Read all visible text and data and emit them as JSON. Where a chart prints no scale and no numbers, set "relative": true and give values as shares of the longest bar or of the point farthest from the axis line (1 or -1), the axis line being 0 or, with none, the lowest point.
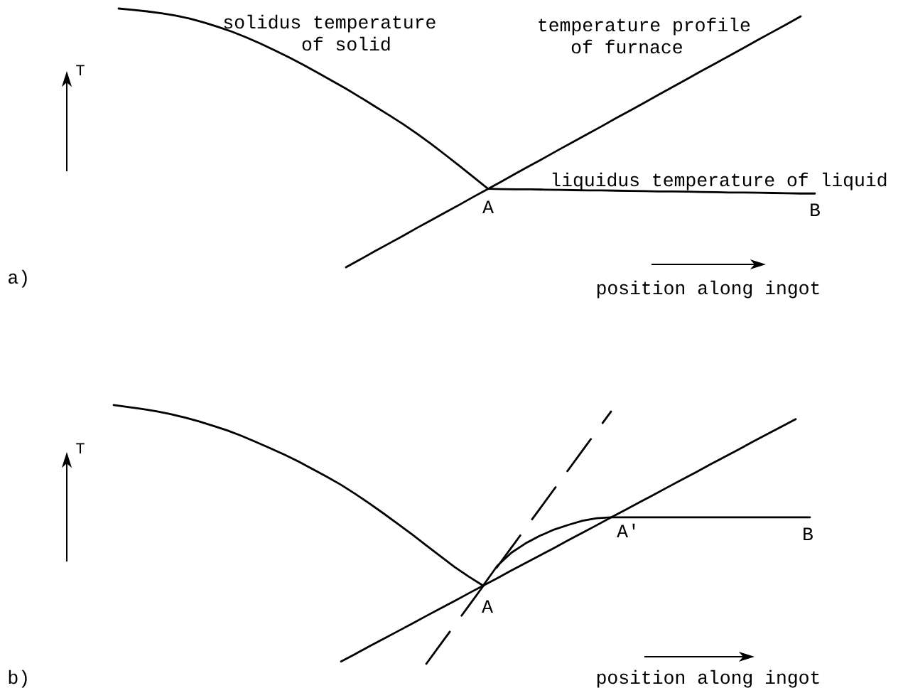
{
  "chart_data": [
    {
      "type": "line",
      "title": "a)",
      "xlabel": "position along ingot",
      "ylabel": "T",
      "relative": true,
      "tick_labels": false,
      "categories": [
        null,
        null,
        null,
        null,
        null,
        null,
        null,
        null,
        null,
        null,
        null,
        null,
        null,
        null,
        null,
        null,
        null,
        null,
        null,
        null,
        null,
        null,
        null,
        null,
        null,
        null,
        null,
        null,
        null,
        null,
        null,
        null,
        null,
        null,
        null,
        null,
        null,
        null,
        null,
        null,
        null,
        null,
        null,
        null,
        null,
        null,
        null,
        null,
        null,
        null
      ],
      "series": [
        {
          "name": "solidus temperature of solid",
          "color": "#000000",
          "values": [
            1.0,
            0.995,
            0.989,
            0.982,
            0.973,
            0.961,
            0.946,
            0.929,
            0.91,
            0.888,
            0.864,
            0.838,
            0.811,
            0.782,
            0.752,
            0.721,
            0.69,
            0.657,
            0.623,
            0.589,
            0.554,
            0.516,
            0.476,
            0.434,
            0.391,
            0.347,
            0.303,
            null,
            null,
            null,
            null,
            null,
            null,
            null,
            null,
            null,
            null,
            null,
            null,
            null,
            null,
            null,
            null,
            null,
            null,
            null,
            null,
            null,
            null,
            null
          ]
        },
        {
          "name": "temperature profile of furnace",
          "color": "#000000",
          "values": [
            null,
            null,
            null,
            null,
            null,
            null,
            null,
            null,
            null,
            null,
            null,
            null,
            null,
            null,
            null,
            null,
            0.0,
            0.03,
            0.061,
            0.091,
            0.121,
            0.152,
            0.182,
            0.212,
            0.242,
            0.273,
            0.303,
            0.333,
            0.364,
            0.394,
            0.424,
            0.455,
            0.485,
            0.515,
            0.545,
            0.576,
            0.606,
            0.636,
            0.667,
            0.697,
            0.727,
            0.758,
            0.788,
            0.818,
            0.848,
            0.879,
            0.909,
            0.939,
            0.97,
            null
          ]
        },
        {
          "name": "liquidus temperature of liquid",
          "color": "#000000",
          "values": [
            null,
            null,
            null,
            null,
            null,
            null,
            null,
            null,
            null,
            null,
            null,
            null,
            null,
            null,
            null,
            null,
            null,
            null,
            null,
            null,
            null,
            null,
            null,
            null,
            null,
            null,
            0.303,
            0.302,
            0.301,
            0.301,
            0.3,
            0.299,
            0.298,
            0.297,
            0.297,
            0.296,
            0.295,
            0.294,
            0.293,
            0.293,
            0.292,
            0.291,
            0.29,
            0.289,
            0.289,
            0.288,
            0.287,
            0.286,
            0.285,
            0.285
          ]
        }
      ],
      "annotations": [
        "A",
        "B"
      ]
    },
    {
      "type": "line",
      "title": "b)",
      "xlabel": "position along ingot",
      "ylabel": "T",
      "relative": true,
      "tick_labels": false,
      "categories": [
        null,
        null,
        null,
        null,
        null,
        null,
        null,
        null,
        null,
        null,
        null,
        null,
        null,
        null,
        null,
        null,
        null,
        null,
        null,
        null,
        null,
        null,
        null,
        null,
        null,
        null,
        null,
        null,
        null,
        null,
        null,
        null,
        null,
        null,
        null,
        null,
        null,
        null,
        null,
        null,
        null,
        null,
        null,
        null,
        null,
        null,
        null,
        null,
        null,
        null
      ],
      "series": [
        {
          "color": "#000000",
          "values": [
            1.0,
            0.993,
            0.985,
            0.976,
            0.965,
            0.952,
            0.937,
            0.92,
            0.902,
            0.881,
            0.858,
            0.834,
            0.809,
            0.782,
            0.753,
            0.723,
            0.692,
            0.657,
            0.62,
            0.581,
            0.541,
            0.5,
            0.458,
            0.416,
            0.374,
            0.337,
            0.302,
            null,
            null,
            null,
            null,
            null,
            null,
            null,
            null,
            null,
            null,
            null,
            null,
            null,
            null,
            null,
            null,
            null,
            null,
            null,
            null,
            null,
            null,
            null
          ]
        },
        {
          "color": "#000000",
          "values": [
            null,
            null,
            null,
            null,
            null,
            null,
            null,
            null,
            null,
            null,
            null,
            null,
            null,
            null,
            null,
            null,
            0.009,
            0.038,
            0.068,
            0.097,
            0.126,
            0.155,
            0.185,
            0.214,
            0.243,
            0.273,
            0.302,
            0.331,
            0.361,
            0.39,
            0.419,
            0.448,
            0.478,
            0.507,
            0.536,
            0.566,
            0.595,
            0.624,
            0.653,
            0.683,
            0.712,
            0.741,
            0.771,
            0.8,
            0.829,
            0.859,
            0.888,
            0.917,
            0.946,
            null
          ]
        },
        {
          "color": "#000000",
          "values": [
            null,
            null,
            null,
            null,
            null,
            null,
            null,
            null,
            null,
            null,
            null,
            null,
            null,
            null,
            null,
            null,
            null,
            null,
            null,
            null,
            null,
            null,
            null,
            null,
            null,
            null,
            0.302,
            0.379,
            0.43,
            0.466,
            0.495,
            0.519,
            0.537,
            0.553,
            0.563,
            0.566,
            0.566,
            0.566,
            0.566,
            0.566,
            0.566,
            0.566,
            0.566,
            0.566,
            0.566,
            0.566,
            0.566,
            0.566,
            0.566,
            0.566
          ]
        },
        {
          "color": "#000000",
          "line_style": "dashed",
          "values": [
            null,
            null,
            null,
            null,
            null,
            null,
            null,
            null,
            null,
            null,
            null,
            null,
            null,
            null,
            null,
            null,
            null,
            null,
            null,
            null,
            null,
            null,
            0.0,
            0.075,
            0.15,
            0.225,
            0.3,
            0.375,
            0.45,
            0.525,
            0.6,
            0.675,
            0.75,
            0.825,
            0.9,
            0.975,
            null,
            null,
            null,
            null,
            null,
            null,
            null,
            null,
            null,
            null,
            null,
            null,
            null,
            null
          ]
        }
      ],
      "annotations": [
        "A",
        "A'",
        "B"
      ]
    }
  ]
}
